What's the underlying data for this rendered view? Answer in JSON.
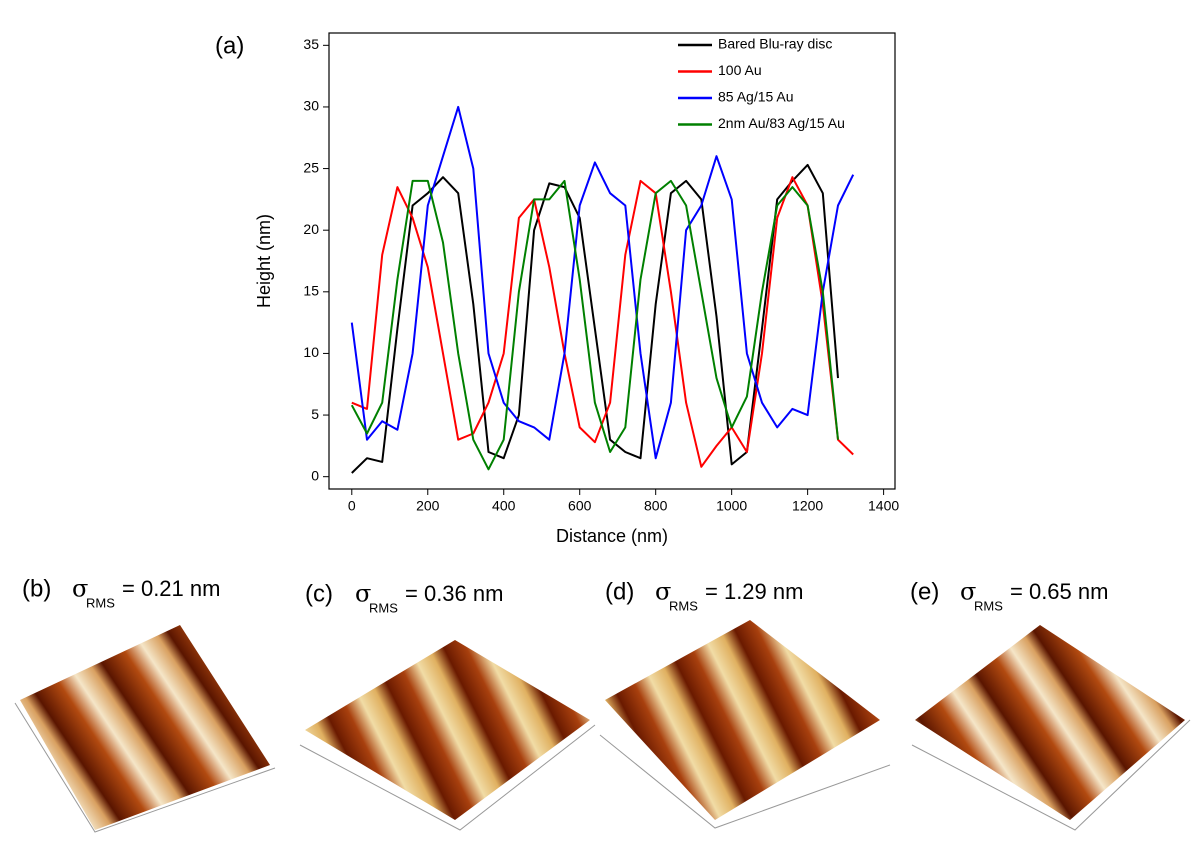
{
  "chart_data": {
    "type": "line",
    "panel_label": "(a)",
    "x_label": "Distance (nm)",
    "y_label": "Height (nm)",
    "x": [
      0,
      40,
      80,
      120,
      160,
      200,
      240,
      280,
      320,
      360,
      400,
      440,
      480,
      520,
      560,
      600,
      640,
      680,
      720,
      760,
      800,
      840,
      880,
      920,
      960,
      1000,
      1040,
      1080,
      1120,
      1160,
      1200,
      1240,
      1280,
      1320
    ],
    "xlim": [
      -60,
      1430
    ],
    "xticks": [
      0,
      200,
      400,
      600,
      800,
      1000,
      1200,
      1400
    ],
    "ylim": [
      -1,
      36
    ],
    "yticks": [
      0,
      5,
      10,
      15,
      20,
      25,
      30,
      35
    ],
    "legend": "upper right",
    "series": [
      {
        "name": "Bared Blu-ray disc",
        "color": "#000000",
        "values": [
          0.3,
          1.5,
          1.2,
          12,
          22,
          23,
          24.3,
          23,
          14,
          2,
          1.5,
          5,
          20,
          23.8,
          23.5,
          21,
          12,
          3,
          2,
          1.5,
          14,
          23,
          24,
          22.5,
          13,
          1,
          2,
          12,
          22.5,
          24,
          25.3,
          23,
          8,
          null
        ]
      },
      {
        "name": "100  Au",
        "color": "#ff0000",
        "values": [
          6,
          5.5,
          18,
          23.5,
          21,
          17,
          10,
          3,
          3.5,
          6,
          10,
          21,
          22.5,
          17,
          10,
          4,
          2.8,
          6,
          18,
          24,
          23,
          15,
          6,
          0.8,
          2.5,
          4,
          2,
          10,
          21,
          24.3,
          22,
          14,
          3,
          1.8
        ]
      },
      {
        "name": "85  Ag/15 Au",
        "color": "#0000ff",
        "values": [
          12.5,
          3,
          4.5,
          3.8,
          10,
          22,
          26,
          30,
          25,
          10,
          6,
          4.5,
          4,
          3,
          10,
          22,
          25.5,
          23,
          22,
          10,
          1.5,
          6,
          20,
          22,
          26,
          22.5,
          10,
          6,
          4,
          5.5,
          5,
          15,
          22,
          24.5
        ]
      },
      {
        "name": "2nm Au/83 Ag/15 Au",
        "color": "#008000",
        "values": [
          5.8,
          3.5,
          6,
          16,
          24,
          24,
          19,
          10,
          3,
          0.6,
          3,
          15,
          22.5,
          22.5,
          24,
          16,
          6,
          2,
          4,
          16,
          23,
          24,
          22,
          15,
          8,
          4,
          6.5,
          15,
          22,
          23.5,
          22,
          15,
          3,
          null
        ]
      }
    ]
  },
  "afm_panels": [
    {
      "label": "(b)",
      "symbol": "σ",
      "subscript": "RMS",
      "value_text": "= 0.21 nm"
    },
    {
      "label": "(c)",
      "symbol": "σ",
      "subscript": "RMS",
      "value_text": "= 0.36 nm"
    },
    {
      "label": "(d)",
      "symbol": "σ",
      "subscript": "RMS",
      "value_text": "= 1.29 nm"
    },
    {
      "label": "(e)",
      "symbol": "σ",
      "subscript": "RMS",
      "value_text": "= 0.65 nm"
    }
  ]
}
